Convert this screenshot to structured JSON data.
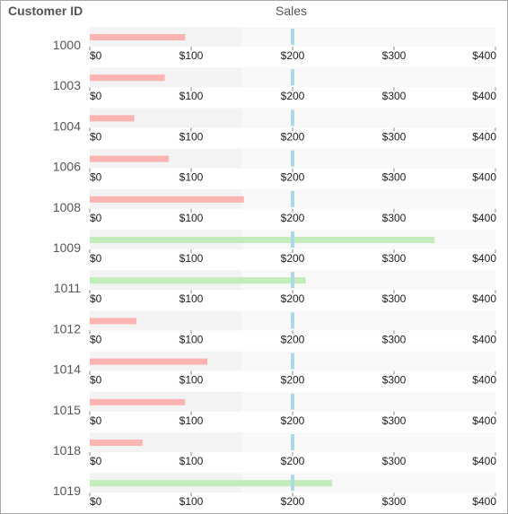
{
  "header": {
    "customer_label": "Customer ID",
    "sales_label": "Sales"
  },
  "colors": {
    "below_target": "#fcb4b2",
    "above_target": "#c2ecb9",
    "target_marker": "#add8e6",
    "band_dark": "#f3f3f3",
    "band_light": "#f8f8f8"
  },
  "chart_data": {
    "type": "bar",
    "orientation": "horizontal",
    "xlim": [
      0,
      400
    ],
    "ticks": [
      0,
      100,
      200,
      300,
      400
    ],
    "tick_labels": [
      "$0",
      "$100",
      "$200",
      "$300",
      "$400"
    ],
    "target": 200,
    "bands": [
      0,
      150,
      400
    ],
    "rows": [
      {
        "id": "1000",
        "value": 94
      },
      {
        "id": "1003",
        "value": 74
      },
      {
        "id": "1004",
        "value": 44
      },
      {
        "id": "1006",
        "value": 78
      },
      {
        "id": "1008",
        "value": 152
      },
      {
        "id": "1009",
        "value": 340
      },
      {
        "id": "1011",
        "value": 213
      },
      {
        "id": "1012",
        "value": 46
      },
      {
        "id": "1014",
        "value": 116
      },
      {
        "id": "1015",
        "value": 94
      },
      {
        "id": "1018",
        "value": 52
      },
      {
        "id": "1019",
        "value": 239
      }
    ]
  }
}
